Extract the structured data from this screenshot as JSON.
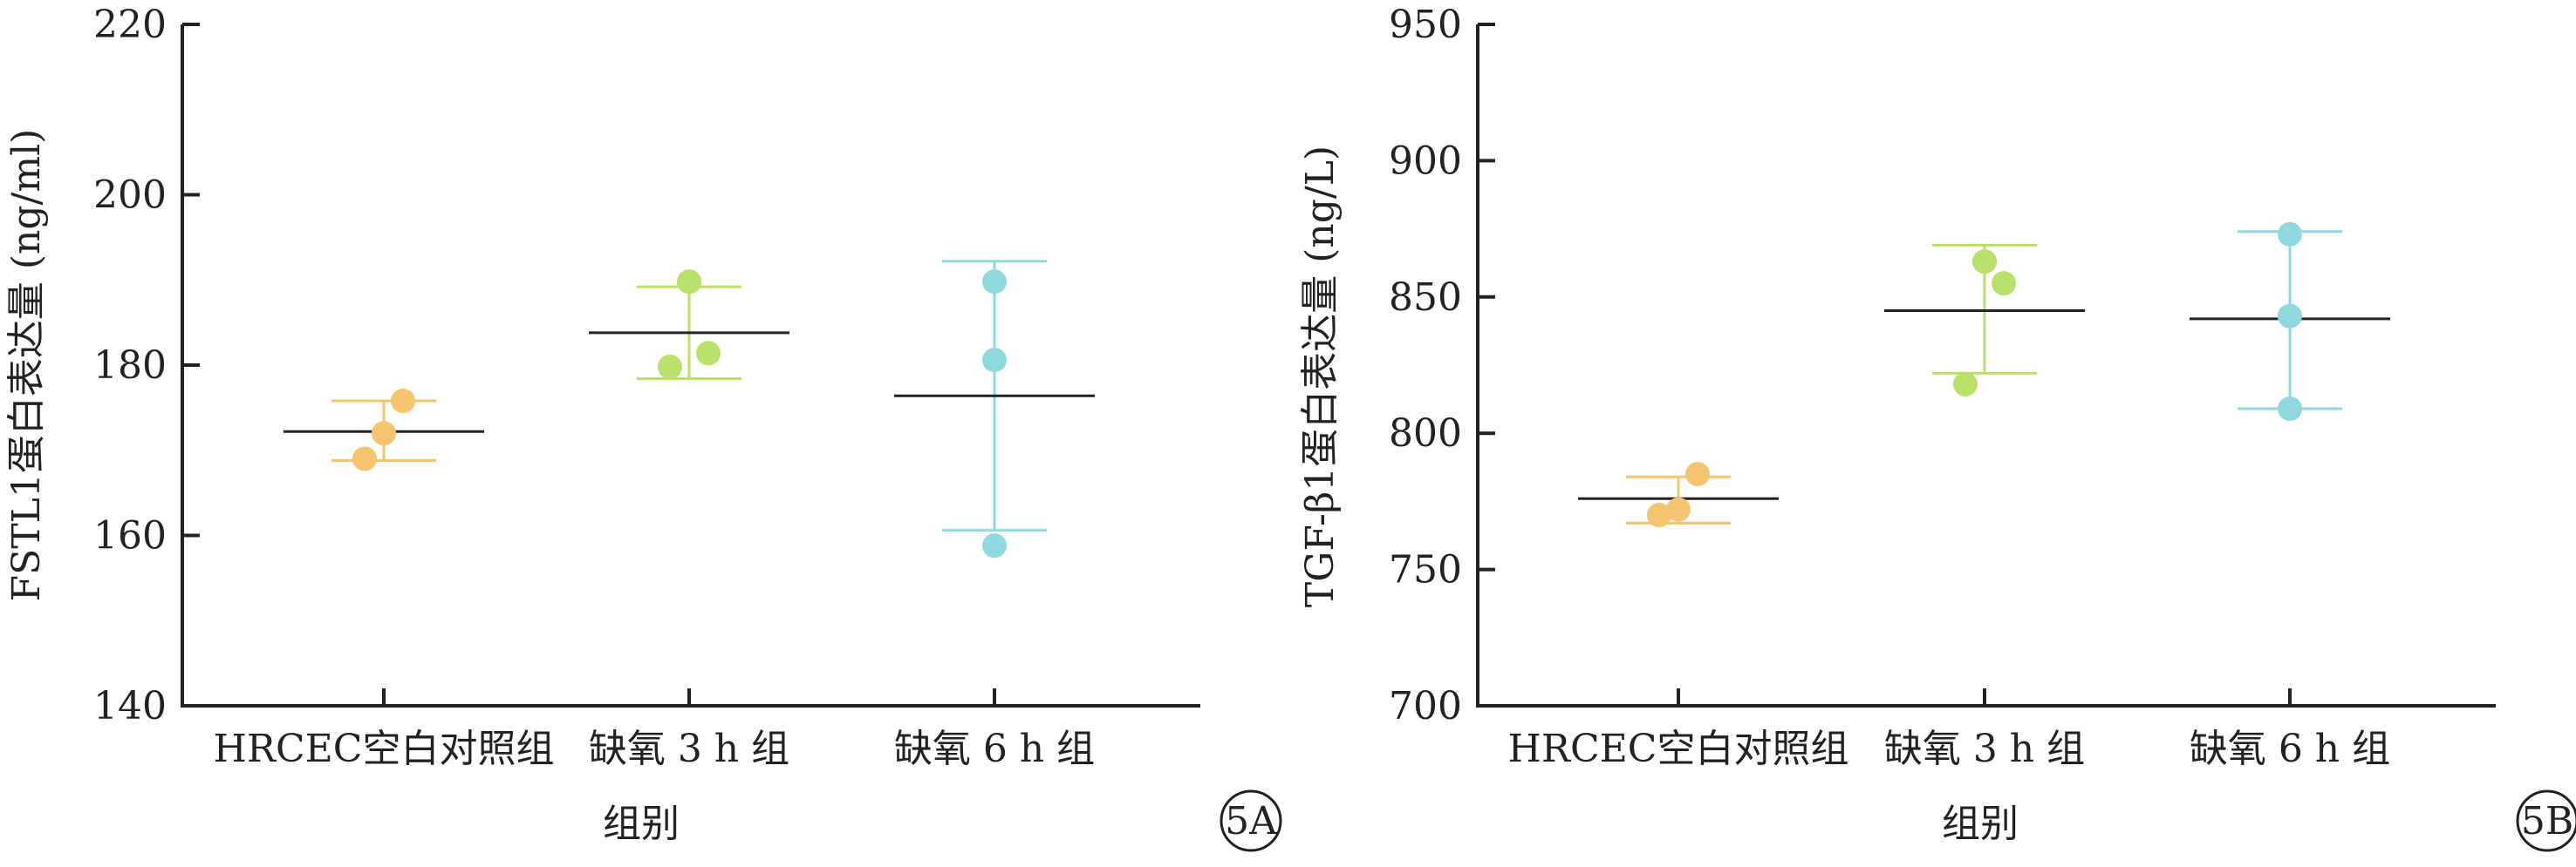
{
  "chart_data": [
    {
      "type": "scatter",
      "panel_label": "5A",
      "xlabel": "组别",
      "ylabel": "FSTL1蛋白表达量 (ng/ml)",
      "ylim": [
        140,
        220
      ],
      "yticks": [
        "140",
        "160",
        "180",
        "200",
        "220"
      ],
      "categories": [
        "HRCEC空白对照组",
        "缺氧 3 h 组",
        "缺氧 6 h 组"
      ],
      "groups": [
        {
          "color": "#f5c46e",
          "points": [
            169.0,
            175.8,
            172.0
          ],
          "mean": 172.2,
          "err_low": 168.8,
          "err_high": 175.8
        },
        {
          "color": "#b9e068",
          "points": [
            179.8,
            181.4,
            189.8
          ],
          "mean": 183.8,
          "err_low": 178.4,
          "err_high": 189.2
        },
        {
          "color": "#8fd9de",
          "points": [
            158.8,
            180.6,
            189.8
          ],
          "mean": 176.4,
          "err_low": 160.6,
          "err_high": 192.2
        }
      ]
    },
    {
      "type": "scatter",
      "panel_label": "5B",
      "xlabel": "组别",
      "ylabel": "TGF-β1蛋白表达量 (ng/L)",
      "ylim": [
        700,
        950
      ],
      "yticks": [
        "700",
        "750",
        "800",
        "850",
        "900",
        "950"
      ],
      "categories": [
        "HRCEC空白对照组",
        "缺氧 3 h 组",
        "缺氧 6 h 组"
      ],
      "groups": [
        {
          "color": "#f5c46e",
          "points": [
            770,
            785,
            772
          ],
          "mean": 776,
          "err_low": 767,
          "err_high": 784
        },
        {
          "color": "#b9e068",
          "points": [
            818,
            855,
            863
          ],
          "mean": 845,
          "err_low": 822,
          "err_high": 869
        },
        {
          "color": "#8fd9de",
          "points": [
            809,
            843,
            873
          ],
          "mean": 842,
          "err_low": 809,
          "err_high": 874
        }
      ]
    }
  ]
}
